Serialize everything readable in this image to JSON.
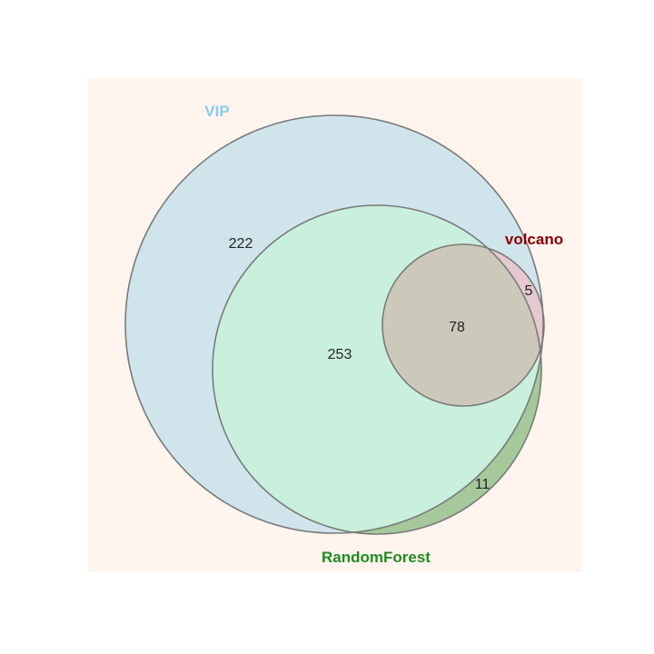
{
  "sets": [
    {
      "key": "vip",
      "label": "VIP",
      "label_color": "#87CEEB",
      "fill": "#ADD8E6"
    },
    {
      "key": "rf",
      "label": "RandomForest",
      "label_color": "#228B22",
      "fill": "#90EE90"
    },
    {
      "key": "volcano",
      "label": "volcano",
      "label_color": "#8B0000",
      "fill": "#FFB6C1"
    }
  ],
  "regions": {
    "vip_only": "222",
    "vip_rf": "253",
    "all_three": "78",
    "volcano_only": "5",
    "rf_only": "11"
  },
  "colors": {
    "panel_background": "#FFF4EE",
    "outline": "#7A7A7A",
    "rf_only_fill": "#A5C99A",
    "volcano_only_fill": "#E6C8D0",
    "all_three_fill": "#CCC9BA"
  }
}
